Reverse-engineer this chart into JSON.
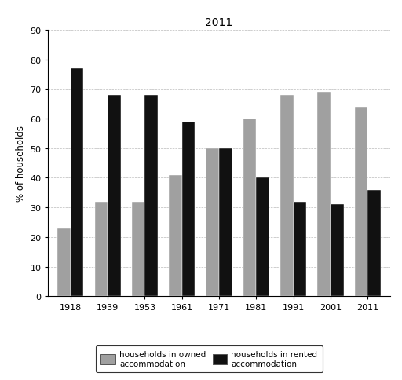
{
  "title": "2011",
  "ylabel": "% of households",
  "years": [
    "1918",
    "1939",
    "1953",
    "1961",
    "1971",
    "1981",
    "1991",
    "2001",
    "2011"
  ],
  "owned": [
    23,
    32,
    32,
    41,
    50,
    60,
    68,
    69,
    64
  ],
  "rented": [
    77,
    68,
    68,
    59,
    50,
    40,
    32,
    31,
    36
  ],
  "owned_color": "#a0a0a0",
  "rented_color": "#111111",
  "ylim": [
    0,
    90
  ],
  "yticks": [
    0,
    10,
    20,
    30,
    40,
    50,
    60,
    70,
    80,
    90
  ],
  "bar_width": 0.35,
  "legend_owned": "households in owned\naccommodation",
  "legend_rented": "households in rented\naccommodation",
  "title_fontsize": 10,
  "ylabel_fontsize": 8.5,
  "tick_fontsize": 8,
  "legend_fontsize": 7.5
}
